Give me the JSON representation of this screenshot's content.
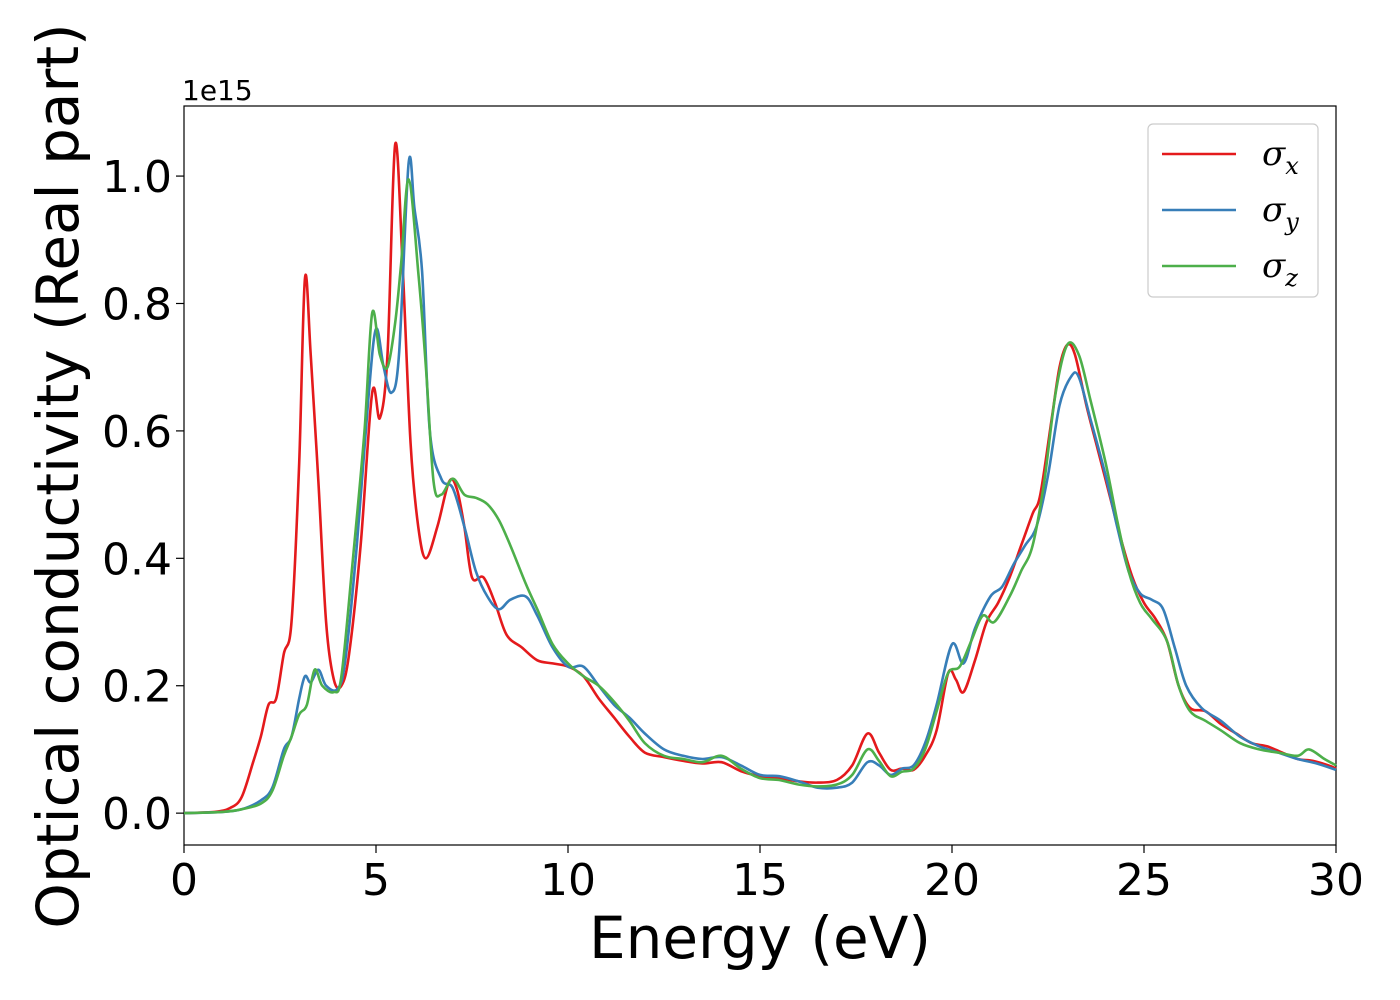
{
  "chart_data": {
    "type": "line",
    "xlabel": "Energy (eV)",
    "ylabel": "Optical conductivity (Real part)",
    "y_offset_label": "1e15",
    "xlim": [
      0,
      30
    ],
    "ylim": [
      -0.05,
      1.11
    ],
    "xticks": [
      0,
      5,
      10,
      15,
      20,
      25,
      30
    ],
    "xtick_labels": [
      "0",
      "5",
      "10",
      "15",
      "20",
      "25",
      "30"
    ],
    "yticks": [
      0.0,
      0.2,
      0.4,
      0.6,
      0.8,
      1.0
    ],
    "ytick_labels": [
      "0.0",
      "0.2",
      "0.4",
      "0.6",
      "0.8",
      "1.0"
    ],
    "grid": false,
    "legend_position": "top-right",
    "series": [
      {
        "name": "σ",
        "subscript": "x",
        "color": "#e41a1c",
        "points": [
          [
            0,
            0
          ],
          [
            0.8,
            0.002
          ],
          [
            1.2,
            0.008
          ],
          [
            1.5,
            0.025
          ],
          [
            1.8,
            0.08
          ],
          [
            2.0,
            0.12
          ],
          [
            2.2,
            0.17
          ],
          [
            2.4,
            0.18
          ],
          [
            2.6,
            0.25
          ],
          [
            2.8,
            0.3
          ],
          [
            3.0,
            0.55
          ],
          [
            3.15,
            0.84
          ],
          [
            3.3,
            0.72
          ],
          [
            3.5,
            0.52
          ],
          [
            3.7,
            0.3
          ],
          [
            3.9,
            0.21
          ],
          [
            4.1,
            0.2
          ],
          [
            4.3,
            0.25
          ],
          [
            4.6,
            0.42
          ],
          [
            4.9,
            0.66
          ],
          [
            5.1,
            0.62
          ],
          [
            5.3,
            0.72
          ],
          [
            5.5,
            1.05
          ],
          [
            5.7,
            0.85
          ],
          [
            5.9,
            0.58
          ],
          [
            6.1,
            0.45
          ],
          [
            6.3,
            0.4
          ],
          [
            6.6,
            0.45
          ],
          [
            6.9,
            0.52
          ],
          [
            7.1,
            0.51
          ],
          [
            7.3,
            0.45
          ],
          [
            7.5,
            0.37
          ],
          [
            7.8,
            0.37
          ],
          [
            8.1,
            0.33
          ],
          [
            8.4,
            0.28
          ],
          [
            8.8,
            0.26
          ],
          [
            9.2,
            0.24
          ],
          [
            9.6,
            0.235
          ],
          [
            10.0,
            0.23
          ],
          [
            10.4,
            0.215
          ],
          [
            10.8,
            0.18
          ],
          [
            11.2,
            0.15
          ],
          [
            11.6,
            0.12
          ],
          [
            12.0,
            0.095
          ],
          [
            12.5,
            0.088
          ],
          [
            13.0,
            0.082
          ],
          [
            13.5,
            0.078
          ],
          [
            14.0,
            0.08
          ],
          [
            14.5,
            0.066
          ],
          [
            15.0,
            0.058
          ],
          [
            15.5,
            0.055
          ],
          [
            16.0,
            0.05
          ],
          [
            16.5,
            0.048
          ],
          [
            17.0,
            0.052
          ],
          [
            17.4,
            0.075
          ],
          [
            17.8,
            0.125
          ],
          [
            18.1,
            0.095
          ],
          [
            18.4,
            0.068
          ],
          [
            18.7,
            0.07
          ],
          [
            19.0,
            0.068
          ],
          [
            19.3,
            0.09
          ],
          [
            19.6,
            0.13
          ],
          [
            19.9,
            0.22
          ],
          [
            20.1,
            0.21
          ],
          [
            20.3,
            0.19
          ],
          [
            20.6,
            0.24
          ],
          [
            20.9,
            0.3
          ],
          [
            21.2,
            0.33
          ],
          [
            21.5,
            0.37
          ],
          [
            21.8,
            0.42
          ],
          [
            22.1,
            0.47
          ],
          [
            22.3,
            0.5
          ],
          [
            22.6,
            0.62
          ],
          [
            22.8,
            0.7
          ],
          [
            23.0,
            0.735
          ],
          [
            23.2,
            0.72
          ],
          [
            23.5,
            0.64
          ],
          [
            23.8,
            0.57
          ],
          [
            24.1,
            0.5
          ],
          [
            24.4,
            0.43
          ],
          [
            24.7,
            0.37
          ],
          [
            25.0,
            0.33
          ],
          [
            25.3,
            0.305
          ],
          [
            25.6,
            0.27
          ],
          [
            25.9,
            0.2
          ],
          [
            26.2,
            0.165
          ],
          [
            26.6,
            0.16
          ],
          [
            27.0,
            0.14
          ],
          [
            27.4,
            0.125
          ],
          [
            27.8,
            0.11
          ],
          [
            28.2,
            0.105
          ],
          [
            28.6,
            0.095
          ],
          [
            29.0,
            0.085
          ],
          [
            29.4,
            0.082
          ],
          [
            29.8,
            0.075
          ],
          [
            30.0,
            0.07
          ]
        ]
      },
      {
        "name": "σ",
        "subscript": "y",
        "color": "#377eb8",
        "points": [
          [
            0,
            0
          ],
          [
            1.0,
            0.002
          ],
          [
            1.5,
            0.006
          ],
          [
            2.0,
            0.02
          ],
          [
            2.3,
            0.04
          ],
          [
            2.6,
            0.1
          ],
          [
            2.8,
            0.12
          ],
          [
            3.0,
            0.18
          ],
          [
            3.15,
            0.215
          ],
          [
            3.3,
            0.205
          ],
          [
            3.5,
            0.225
          ],
          [
            3.7,
            0.2
          ],
          [
            4.0,
            0.195
          ],
          [
            4.2,
            0.24
          ],
          [
            4.5,
            0.42
          ],
          [
            4.8,
            0.65
          ],
          [
            5.0,
            0.76
          ],
          [
            5.2,
            0.7
          ],
          [
            5.4,
            0.66
          ],
          [
            5.6,
            0.72
          ],
          [
            5.85,
            1.02
          ],
          [
            6.0,
            0.95
          ],
          [
            6.2,
            0.85
          ],
          [
            6.4,
            0.6
          ],
          [
            6.7,
            0.525
          ],
          [
            7.0,
            0.51
          ],
          [
            7.3,
            0.45
          ],
          [
            7.6,
            0.38
          ],
          [
            7.9,
            0.34
          ],
          [
            8.2,
            0.32
          ],
          [
            8.5,
            0.335
          ],
          [
            8.9,
            0.34
          ],
          [
            9.2,
            0.31
          ],
          [
            9.6,
            0.26
          ],
          [
            10.0,
            0.23
          ],
          [
            10.4,
            0.23
          ],
          [
            10.8,
            0.2
          ],
          [
            11.2,
            0.17
          ],
          [
            11.6,
            0.15
          ],
          [
            12.0,
            0.125
          ],
          [
            12.5,
            0.1
          ],
          [
            13.0,
            0.09
          ],
          [
            13.5,
            0.085
          ],
          [
            14.0,
            0.088
          ],
          [
            14.5,
            0.075
          ],
          [
            15.0,
            0.06
          ],
          [
            15.5,
            0.058
          ],
          [
            16.0,
            0.05
          ],
          [
            16.5,
            0.04
          ],
          [
            17.0,
            0.04
          ],
          [
            17.4,
            0.048
          ],
          [
            17.8,
            0.08
          ],
          [
            18.1,
            0.075
          ],
          [
            18.4,
            0.06
          ],
          [
            18.7,
            0.07
          ],
          [
            19.0,
            0.075
          ],
          [
            19.3,
            0.11
          ],
          [
            19.6,
            0.17
          ],
          [
            20.0,
            0.265
          ],
          [
            20.3,
            0.235
          ],
          [
            20.6,
            0.29
          ],
          [
            21.0,
            0.34
          ],
          [
            21.3,
            0.355
          ],
          [
            21.6,
            0.39
          ],
          [
            21.9,
            0.42
          ],
          [
            22.2,
            0.45
          ],
          [
            22.5,
            0.53
          ],
          [
            22.8,
            0.64
          ],
          [
            23.1,
            0.685
          ],
          [
            23.3,
            0.685
          ],
          [
            23.6,
            0.62
          ],
          [
            24.0,
            0.53
          ],
          [
            24.3,
            0.45
          ],
          [
            24.6,
            0.38
          ],
          [
            24.9,
            0.345
          ],
          [
            25.2,
            0.335
          ],
          [
            25.5,
            0.32
          ],
          [
            25.8,
            0.26
          ],
          [
            26.1,
            0.2
          ],
          [
            26.5,
            0.165
          ],
          [
            27.0,
            0.145
          ],
          [
            27.5,
            0.12
          ],
          [
            28.0,
            0.105
          ],
          [
            28.5,
            0.095
          ],
          [
            29.0,
            0.085
          ],
          [
            29.5,
            0.078
          ],
          [
            30.0,
            0.068
          ]
        ]
      },
      {
        "name": "σ",
        "subscript": "z",
        "color": "#4daf4a",
        "points": [
          [
            0,
            0
          ],
          [
            1.0,
            0.002
          ],
          [
            1.5,
            0.006
          ],
          [
            2.0,
            0.015
          ],
          [
            2.3,
            0.035
          ],
          [
            2.6,
            0.09
          ],
          [
            2.8,
            0.12
          ],
          [
            3.0,
            0.155
          ],
          [
            3.2,
            0.17
          ],
          [
            3.4,
            0.225
          ],
          [
            3.6,
            0.2
          ],
          [
            3.9,
            0.19
          ],
          [
            4.1,
            0.215
          ],
          [
            4.4,
            0.4
          ],
          [
            4.7,
            0.6
          ],
          [
            4.9,
            0.785
          ],
          [
            5.1,
            0.72
          ],
          [
            5.3,
            0.7
          ],
          [
            5.5,
            0.77
          ],
          [
            5.65,
            0.86
          ],
          [
            5.85,
            0.995
          ],
          [
            6.1,
            0.85
          ],
          [
            6.3,
            0.7
          ],
          [
            6.5,
            0.52
          ],
          [
            6.7,
            0.5
          ],
          [
            7.0,
            0.525
          ],
          [
            7.3,
            0.5
          ],
          [
            7.6,
            0.495
          ],
          [
            7.9,
            0.485
          ],
          [
            8.2,
            0.46
          ],
          [
            8.5,
            0.42
          ],
          [
            8.9,
            0.36
          ],
          [
            9.2,
            0.32
          ],
          [
            9.6,
            0.265
          ],
          [
            10.0,
            0.235
          ],
          [
            10.4,
            0.215
          ],
          [
            10.8,
            0.2
          ],
          [
            11.2,
            0.175
          ],
          [
            11.6,
            0.145
          ],
          [
            12.0,
            0.11
          ],
          [
            12.5,
            0.09
          ],
          [
            13.0,
            0.085
          ],
          [
            13.5,
            0.08
          ],
          [
            14.0,
            0.09
          ],
          [
            14.5,
            0.07
          ],
          [
            15.0,
            0.055
          ],
          [
            15.5,
            0.052
          ],
          [
            16.0,
            0.045
          ],
          [
            16.5,
            0.042
          ],
          [
            17.0,
            0.045
          ],
          [
            17.4,
            0.06
          ],
          [
            17.8,
            0.1
          ],
          [
            18.1,
            0.082
          ],
          [
            18.4,
            0.058
          ],
          [
            18.7,
            0.065
          ],
          [
            19.0,
            0.07
          ],
          [
            19.3,
            0.1
          ],
          [
            19.6,
            0.16
          ],
          [
            19.9,
            0.22
          ],
          [
            20.2,
            0.23
          ],
          [
            20.5,
            0.27
          ],
          [
            20.8,
            0.31
          ],
          [
            21.1,
            0.3
          ],
          [
            21.5,
            0.34
          ],
          [
            21.8,
            0.38
          ],
          [
            22.1,
            0.42
          ],
          [
            22.4,
            0.52
          ],
          [
            22.7,
            0.66
          ],
          [
            23.0,
            0.735
          ],
          [
            23.3,
            0.72
          ],
          [
            23.6,
            0.65
          ],
          [
            24.0,
            0.55
          ],
          [
            24.3,
            0.46
          ],
          [
            24.6,
            0.38
          ],
          [
            24.9,
            0.33
          ],
          [
            25.2,
            0.305
          ],
          [
            25.6,
            0.27
          ],
          [
            25.9,
            0.2
          ],
          [
            26.2,
            0.16
          ],
          [
            26.6,
            0.145
          ],
          [
            27.0,
            0.13
          ],
          [
            27.5,
            0.11
          ],
          [
            28.0,
            0.1
          ],
          [
            28.5,
            0.095
          ],
          [
            29.0,
            0.09
          ],
          [
            29.3,
            0.1
          ],
          [
            29.7,
            0.085
          ],
          [
            30.0,
            0.075
          ]
        ]
      }
    ]
  }
}
